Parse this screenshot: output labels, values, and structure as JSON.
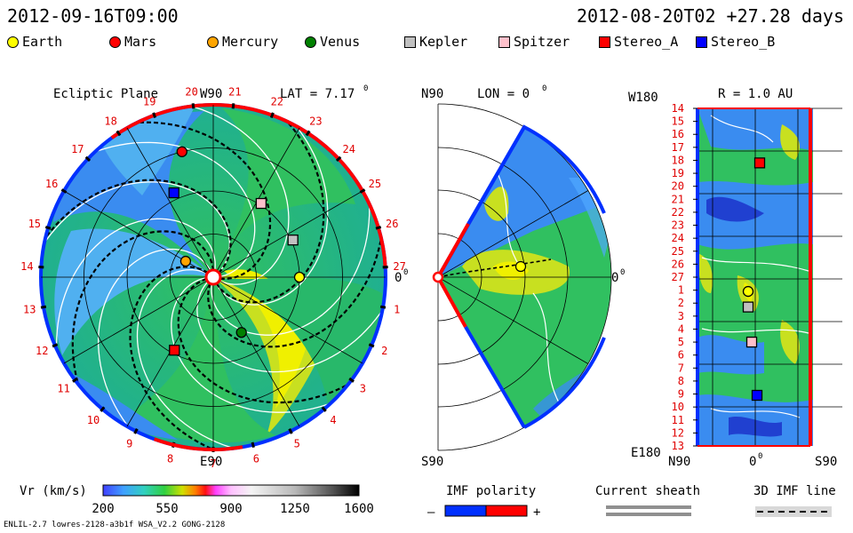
{
  "header": {
    "left_timestamp": "2012-09-16T09:00",
    "right_timestamp": "2012-08-20T02 +27.28 days"
  },
  "legend": [
    {
      "label": "Earth",
      "shape": "circle",
      "color": "#ffff00"
    },
    {
      "label": "Mars",
      "shape": "circle",
      "color": "#ff0000"
    },
    {
      "label": "Mercury",
      "shape": "circle",
      "color": "#ffa500"
    },
    {
      "label": "Venus",
      "shape": "circle",
      "color": "#008000"
    },
    {
      "label": "Kepler",
      "shape": "square",
      "color": "#c0c0c0"
    },
    {
      "label": "Spitzer",
      "shape": "square",
      "color": "#ffc0cb"
    },
    {
      "label": "Stereo_A",
      "shape": "square",
      "color": "#ff0000"
    },
    {
      "label": "Stereo_B",
      "shape": "square",
      "color": "#0000ff"
    }
  ],
  "chart_data": [
    {
      "type": "polar-heatmap",
      "title": "Ecliptic Plane",
      "lat_label": "LAT = 7.17",
      "lat_deg_sign": "0",
      "top_label": "W90",
      "bottom_label": "E90",
      "right_label": "0",
      "right_deg_sign": "0",
      "carrington_rotation_ticks": [
        "19",
        "20",
        "21",
        "22",
        "23",
        "24",
        "25",
        "26",
        "27",
        "1",
        "2",
        "3",
        "4",
        "5",
        "6",
        "7",
        "8",
        "9",
        "10",
        "11",
        "12",
        "13",
        "14",
        "15",
        "16",
        "17",
        "18"
      ],
      "bodies": [
        {
          "name": "Earth",
          "r_au": 1.0,
          "angle_deg": 0
        },
        {
          "name": "Mars",
          "r_au": 1.5,
          "angle_deg": -104
        },
        {
          "name": "Mercury",
          "r_au": 0.37,
          "angle_deg": -150
        },
        {
          "name": "Venus",
          "r_au": 0.72,
          "angle_deg": 63
        },
        {
          "name": "Kepler",
          "r_au": 1.02,
          "angle_deg": -25
        },
        {
          "name": "Spitzer",
          "r_au": 1.02,
          "angle_deg": -57
        },
        {
          "name": "Stereo_A",
          "r_au": 0.96,
          "angle_deg": 118
        },
        {
          "name": "Stereo_B",
          "r_au": 1.08,
          "angle_deg": -115
        }
      ]
    },
    {
      "type": "meridional-heatmap",
      "title": "LON = 0",
      "title_deg_sign": "0",
      "top_label": "N90",
      "bottom_label": "S90",
      "right_label": "0",
      "right_deg_sign": "0"
    },
    {
      "type": "heatmap",
      "title": "R = 1.0 AU",
      "top_left_label": "W180",
      "bottom_left_label": "E180",
      "y_ticks": [
        "14",
        "15",
        "16",
        "17",
        "18",
        "19",
        "20",
        "21",
        "22",
        "23",
        "24",
        "25",
        "26",
        "27",
        "1",
        "2",
        "3",
        "4",
        "5",
        "6",
        "7",
        "8",
        "9",
        "10",
        "11",
        "12",
        "13"
      ],
      "x_ticks": [
        "N90",
        "0",
        "S90"
      ],
      "x_zero_deg_sign": "0",
      "bodies": [
        {
          "name": "Stereo_A",
          "row": 4.2
        },
        {
          "name": "Earth",
          "row": 14.1
        },
        {
          "name": "Kepler",
          "row": 15.3
        },
        {
          "name": "Spitzer",
          "row": 18.0
        },
        {
          "name": "Stereo_B",
          "row": 22.1
        }
      ]
    },
    {
      "type": "colorbar",
      "label": "Vr (km/s)",
      "ticks": [
        "200",
        "550",
        "900",
        "1250",
        "1600"
      ],
      "range": [
        200,
        1600
      ]
    }
  ],
  "bottom_legends": {
    "imf_polarity": "IMF polarity",
    "minus": "–",
    "plus": "+",
    "current_sheath": "Current sheath",
    "imf_line": "3D IMF line"
  },
  "footer": "ENLIL-2.7 lowres-2128-a3b1f WSA_V2.2 GONG-2128"
}
